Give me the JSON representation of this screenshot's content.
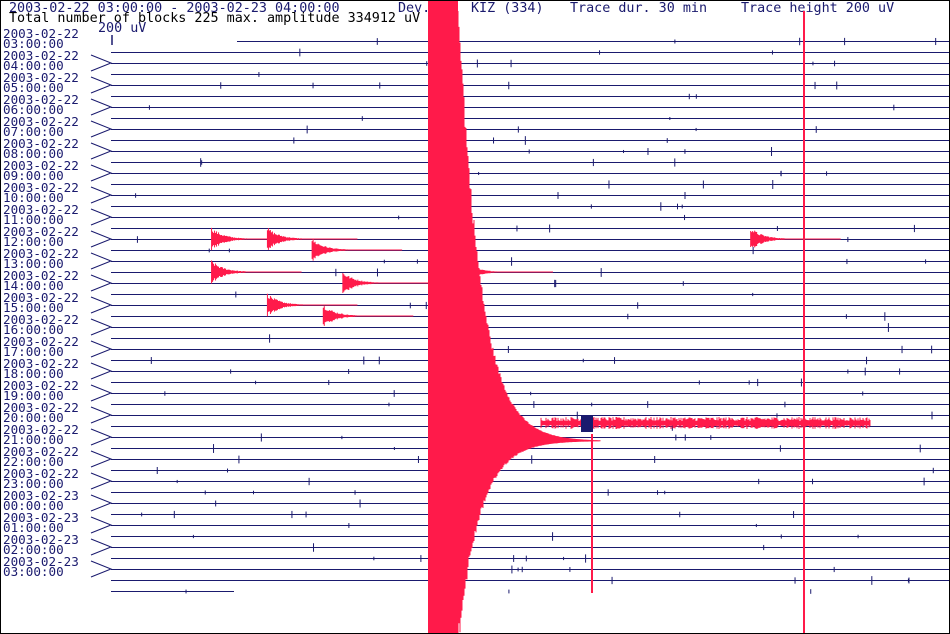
{
  "header": {
    "time_range": "2003-02-22 03:00:00 - 2003-02-23 04:00:00",
    "device": "Dev.",
    "station": "KIZ (334)",
    "trace_duration": "Trace dur. 30 min",
    "trace_height": "Trace height 200 uV",
    "blocks_info": "Total number of blocks 225 max. amplitude 334912 uV",
    "scale_label": "200 uV"
  },
  "colors": {
    "background": "#ffffff",
    "trace": "#1a1a6e",
    "event": "#ff1a4a",
    "text": "#1a1a6e"
  },
  "chart_data": {
    "type": "seismogram (helicorder)",
    "trace_duration_min": 30,
    "trace_height_uv": 200,
    "max_amplitude_uv": 334912,
    "total_blocks": 225,
    "hour_labels": [
      {
        "date": "2003-02-22",
        "time": "03:00:00"
      },
      {
        "date": "2003-02-22",
        "time": "04:00:00"
      },
      {
        "date": "2003-02-22",
        "time": "05:00:00"
      },
      {
        "date": "2003-02-22",
        "time": "06:00:00"
      },
      {
        "date": "2003-02-22",
        "time": "07:00:00"
      },
      {
        "date": "2003-02-22",
        "time": "08:00:00"
      },
      {
        "date": "2003-02-22",
        "time": "09:00:00"
      },
      {
        "date": "2003-02-22",
        "time": "10:00:00"
      },
      {
        "date": "2003-02-22",
        "time": "11:00:00"
      },
      {
        "date": "2003-02-22",
        "time": "12:00:00"
      },
      {
        "date": "2003-02-22",
        "time": "13:00:00"
      },
      {
        "date": "2003-02-22",
        "time": "14:00:00"
      },
      {
        "date": "2003-02-22",
        "time": "15:00:00"
      },
      {
        "date": "2003-02-22",
        "time": "16:00:00"
      },
      {
        "date": "2003-02-22",
        "time": "17:00:00"
      },
      {
        "date": "2003-02-22",
        "time": "18:00:00"
      },
      {
        "date": "2003-02-22",
        "time": "19:00:00"
      },
      {
        "date": "2003-02-22",
        "time": "20:00:00"
      },
      {
        "date": "2003-02-22",
        "time": "21:00:00"
      },
      {
        "date": "2003-02-22",
        "time": "22:00:00"
      },
      {
        "date": "2003-02-22",
        "time": "23:00:00"
      },
      {
        "date": "2003-02-23",
        "time": "00:00:00"
      },
      {
        "date": "2003-02-23",
        "time": "01:00:00"
      },
      {
        "date": "2003-02-23",
        "time": "02:00:00"
      },
      {
        "date": "2003-02-23",
        "time": "03:00:00"
      }
    ],
    "events": [
      {
        "name": "main",
        "hour_index": 0,
        "minute": 8.5
      },
      {
        "name": "e1",
        "hour_index": 18,
        "minute": 3.6
      },
      {
        "name": "e2",
        "hour_index": 18,
        "minute": 5.6
      },
      {
        "name": "e3",
        "hour_index": 19,
        "minute": 7.2
      },
      {
        "name": "e4",
        "hour_index": 21,
        "minute": 3.6
      },
      {
        "name": "e5",
        "hour_index": 21,
        "minute": 12.6
      },
      {
        "name": "e6",
        "hour_index": 22,
        "minute": 8.3
      },
      {
        "name": "e7",
        "hour_index": 25,
        "minute": 7.6
      },
      {
        "name": "e8",
        "hour_index": 18,
        "minute": 22.9
      },
      {
        "name": "e9",
        "hour_index": 24,
        "minute": 5.6
      }
    ]
  }
}
